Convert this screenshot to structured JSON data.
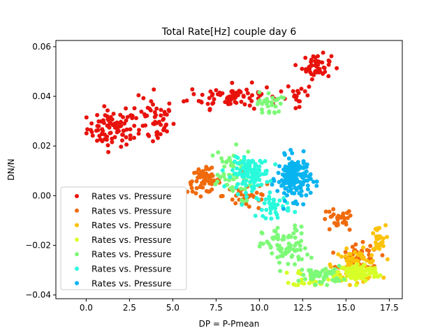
{
  "chart_data": {
    "type": "scatter",
    "title": "Total Rate[Hz] couple day 6",
    "xlabel": "DP = P-Pmean",
    "ylabel": "DN/N",
    "xlim": [
      -1.75,
      18.25
    ],
    "ylim": [
      -0.0415,
      0.0625
    ],
    "x_ticks": [
      0.0,
      2.5,
      5.0,
      7.5,
      10.0,
      12.5,
      15.0,
      17.5
    ],
    "x_tick_labels": [
      "0.0",
      "2.5",
      "5.0",
      "7.5",
      "10.0",
      "12.5",
      "15.0",
      "17.5"
    ],
    "y_ticks": [
      -0.04,
      -0.02,
      0.0,
      0.02,
      0.04,
      0.06
    ],
    "y_tick_labels": [
      "−0.04",
      "−0.02",
      "0.00",
      "0.02",
      "0.04",
      "0.06"
    ],
    "grid": false,
    "legend_placement": "lower-left",
    "series": [
      {
        "name": "Rates vs. Pressure",
        "color": "#e8120c",
        "clusters": [
          {
            "cx": 1.5,
            "cy": 0.027,
            "sx": 1.2,
            "sy": 0.006,
            "n": 85
          },
          {
            "cx": 3.8,
            "cy": 0.03,
            "sx": 1.1,
            "sy": 0.008,
            "n": 55
          },
          {
            "cx": 8.5,
            "cy": 0.04,
            "sx": 2.2,
            "sy": 0.004,
            "n": 80
          },
          {
            "cx": 13.3,
            "cy": 0.052,
            "sx": 0.7,
            "sy": 0.004,
            "n": 50
          },
          {
            "cx": 12.3,
            "cy": 0.041,
            "sx": 0.6,
            "sy": 0.004,
            "n": 15
          }
        ]
      },
      {
        "name": "Rates vs. Pressure",
        "color": "#f06a0c",
        "clusters": [
          {
            "cx": 6.8,
            "cy": 0.006,
            "sx": 0.8,
            "sy": 0.004,
            "n": 60
          },
          {
            "cx": 9.3,
            "cy": 0.0,
            "sx": 1.2,
            "sy": 0.005,
            "n": 40
          },
          {
            "cx": 14.5,
            "cy": -0.01,
            "sx": 0.8,
            "sy": 0.004,
            "n": 30
          },
          {
            "cx": 15.8,
            "cy": -0.026,
            "sx": 0.9,
            "sy": 0.005,
            "n": 60
          }
        ]
      },
      {
        "name": "Rates vs. Pressure",
        "color": "#fcc20a",
        "clusters": [
          {
            "cx": 15.6,
            "cy": -0.028,
            "sx": 1.1,
            "sy": 0.005,
            "n": 90
          },
          {
            "cx": 16.8,
            "cy": -0.018,
            "sx": 0.4,
            "sy": 0.005,
            "n": 25
          }
        ]
      },
      {
        "name": "Rates vs. Pressure",
        "color": "#d7ff28",
        "clusters": [
          {
            "cx": 15.7,
            "cy": -0.031,
            "sx": 1.0,
            "sy": 0.003,
            "n": 110
          },
          {
            "cx": 13.0,
            "cy": -0.033,
            "sx": 0.9,
            "sy": 0.003,
            "n": 30
          }
        ]
      },
      {
        "name": "Rates vs. Pressure",
        "color": "#7dfa78",
        "clusters": [
          {
            "cx": 8.2,
            "cy": 0.008,
            "sx": 1.2,
            "sy": 0.009,
            "n": 55
          },
          {
            "cx": 10.6,
            "cy": 0.037,
            "sx": 0.6,
            "sy": 0.004,
            "n": 30
          },
          {
            "cx": 11.5,
            "cy": -0.021,
            "sx": 1.1,
            "sy": 0.007,
            "n": 80
          },
          {
            "cx": 13.6,
            "cy": -0.032,
            "sx": 1.0,
            "sy": 0.003,
            "n": 55
          }
        ]
      },
      {
        "name": "Rates vs. Pressure",
        "color": "#2afadc",
        "clusters": [
          {
            "cx": 9.5,
            "cy": 0.009,
            "sx": 0.9,
            "sy": 0.005,
            "n": 120
          },
          {
            "cx": 10.8,
            "cy": -0.004,
            "sx": 0.8,
            "sy": 0.004,
            "n": 40
          }
        ]
      },
      {
        "name": "Rates vs. Pressure",
        "color": "#08b4f0",
        "clusters": [
          {
            "cx": 12.0,
            "cy": 0.007,
            "sx": 0.8,
            "sy": 0.007,
            "n": 170
          }
        ]
      }
    ]
  }
}
